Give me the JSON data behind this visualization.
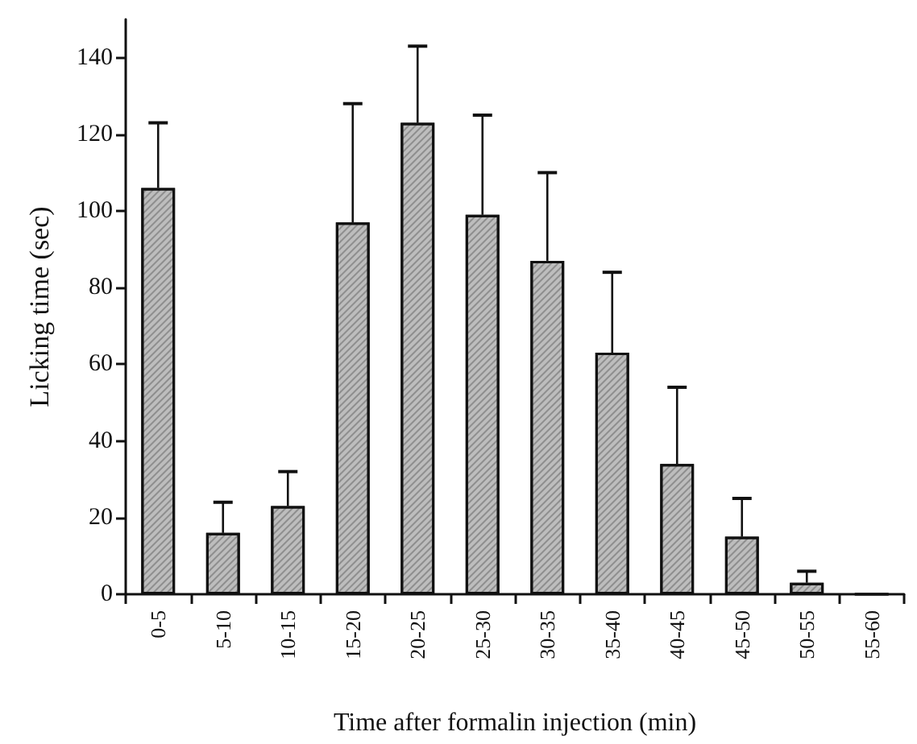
{
  "chart_data": {
    "type": "bar",
    "xlabel": "Time after formalin injection (min)",
    "ylabel": "Licking time (sec)",
    "categories": [
      "0-5",
      "5-10",
      "10-15",
      "15-20",
      "20-25",
      "25-30",
      "30-35",
      "35-40",
      "40-45",
      "45-50",
      "50-55",
      "55-60"
    ],
    "values": [
      106,
      16,
      23,
      97,
      123,
      99,
      87,
      63,
      34,
      15,
      3,
      0
    ],
    "errors": [
      [
        106,
        123
      ],
      [
        16,
        24
      ],
      [
        23,
        32
      ],
      [
        97,
        128
      ],
      [
        123,
        143
      ],
      [
        99,
        125
      ],
      [
        87,
        110
      ],
      [
        63,
        84
      ],
      [
        34,
        54
      ],
      [
        15,
        25
      ],
      [
        3,
        6
      ],
      null
    ],
    "color": "#bdbdbd",
    "ylim": [
      0,
      150
    ],
    "yticks": [
      0,
      20,
      40,
      60,
      80,
      100,
      120,
      140
    ],
    "grid": false
  }
}
